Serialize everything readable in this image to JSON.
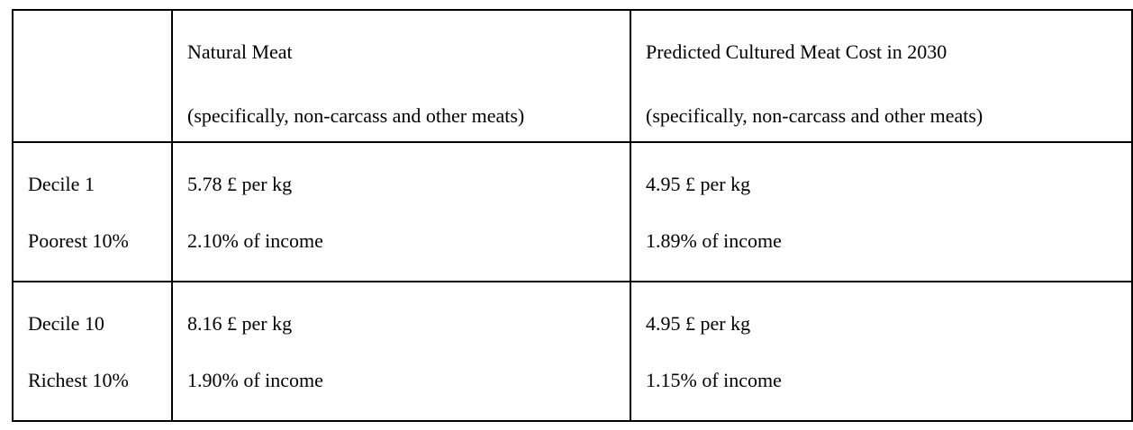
{
  "page": {
    "background_color": "#ffffff",
    "text_color": "#000000",
    "border_color": "#000000"
  },
  "table": {
    "columns": [
      {
        "title": "",
        "subtitle": ""
      },
      {
        "title": "Natural Meat",
        "subtitle": "(specifically, non-carcass and other meats)"
      },
      {
        "title": "Predicted Cultured Meat Cost in 2030",
        "subtitle": "(specifically, non-carcass and other meats)"
      }
    ],
    "rows": [
      {
        "label_title": "Decile 1",
        "label_subtitle": "Poorest 10%",
        "natural_price": "5.78 £ per kg",
        "natural_income_share": "2.10% of income",
        "cultured_price": "4.95 £ per kg",
        "cultured_income_share": "1.89% of income"
      },
      {
        "label_title": "Decile 10",
        "label_subtitle": "Richest 10%",
        "natural_price": "8.16 £ per kg",
        "natural_income_share": "1.90% of income",
        "cultured_price": "4.95 £ per kg",
        "cultured_income_share": "1.15% of income"
      }
    ]
  }
}
